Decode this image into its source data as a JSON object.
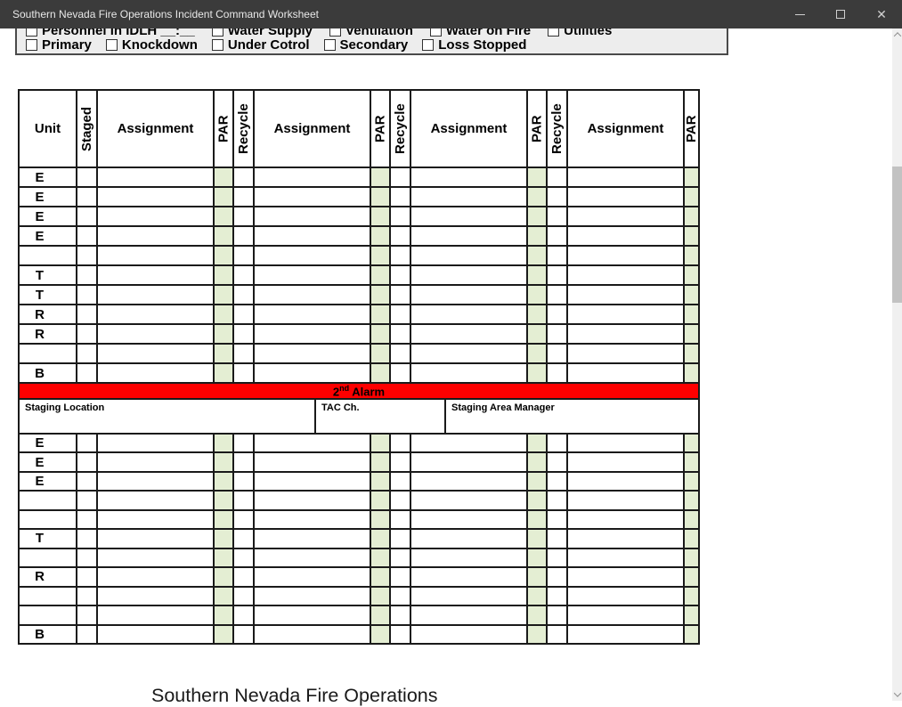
{
  "window": {
    "title": "Southern Nevada Fire Operations Incident Command Worksheet",
    "controls": {
      "minimize": "minimize",
      "maximize": "maximize",
      "close": "close"
    }
  },
  "status_panel": {
    "row1": [
      "Personnel in IDLH __:__",
      "Water Supply",
      "Ventilation",
      "Water on Fire",
      "Utilities"
    ],
    "row2": [
      "Primary",
      "Knockdown",
      "Under Cotrol",
      "Secondary",
      "Loss Stopped"
    ]
  },
  "worksheet": {
    "columns": {
      "unit": "Unit",
      "staged": "Staged",
      "assignment": "Assignment",
      "par": "PAR",
      "recycle": "Recycle"
    },
    "alarm_banner": {
      "number": "2",
      "ordinal": "nd",
      "label": " Alarm"
    },
    "staging_labels": {
      "location": "Staging Location",
      "tac": "TAC Ch.",
      "manager": "Staging Area Manager"
    },
    "block1_units": [
      "E",
      "E",
      "E",
      "E",
      "",
      "T",
      "T",
      "R",
      "R",
      "",
      "B"
    ],
    "block2_units": [
      "E",
      "E",
      "E",
      "",
      "",
      "T",
      "",
      "R",
      "",
      "",
      "B"
    ]
  },
  "page2": {
    "heading": "Southern Nevada Fire Operations"
  },
  "colors": {
    "titlebar": "#3b3b3b",
    "alarm_red": "#fe0000",
    "par_green": "#e4eed3",
    "table_border": "#1a1a1a"
  }
}
